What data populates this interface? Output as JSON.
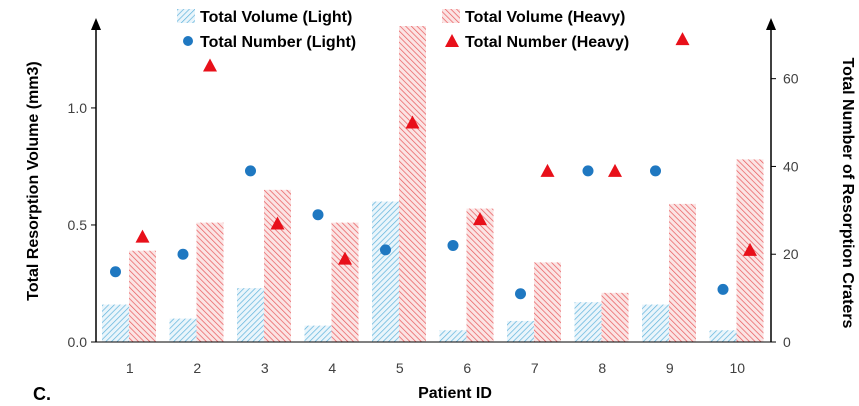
{
  "panel_label": "C.",
  "colors": {
    "light": "#5fb3dc",
    "heavy": "#e8585a",
    "light_marker": "#1f78c1",
    "heavy_marker": "#e8101a"
  },
  "chart_data": {
    "type": "bar",
    "xlabel": "Patient ID",
    "ylabel": "Total Resorption Volume (mm3)",
    "y2label": "Total Number of Resorption Craters",
    "categories": [
      "1",
      "2",
      "3",
      "4",
      "5",
      "6",
      "7",
      "8",
      "9",
      "10"
    ],
    "ylim": [
      0,
      1.35
    ],
    "yticks": [
      "0.0",
      "0.5",
      "1.0"
    ],
    "y2lim": [
      0,
      72
    ],
    "y2ticks": [
      "0",
      "20",
      "40",
      "60"
    ],
    "grid": false,
    "legend_position": "top",
    "series": [
      {
        "name": "Total Volume (Light)",
        "kind": "bar",
        "axis": "left",
        "values": [
          0.16,
          0.1,
          0.23,
          0.07,
          0.6,
          0.05,
          0.09,
          0.17,
          0.16,
          0.05
        ]
      },
      {
        "name": "Total Volume (Heavy)",
        "kind": "bar",
        "axis": "left",
        "values": [
          0.39,
          0.51,
          0.65,
          0.51,
          1.35,
          0.57,
          0.34,
          0.21,
          0.59,
          0.78
        ]
      },
      {
        "name": "Total Number (Light)",
        "kind": "scatter",
        "axis": "right",
        "marker": "circle",
        "values": [
          16,
          20,
          39,
          29,
          21,
          22,
          11,
          39,
          39,
          12
        ]
      },
      {
        "name": "Total Number (Heavy)",
        "kind": "scatter",
        "axis": "right",
        "marker": "triangle",
        "values": [
          24,
          63,
          27,
          19,
          50,
          28,
          39,
          39,
          69,
          21
        ]
      }
    ]
  }
}
